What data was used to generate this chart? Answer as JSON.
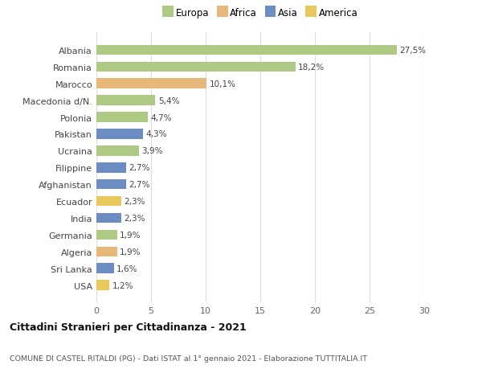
{
  "countries": [
    "Albania",
    "Romania",
    "Marocco",
    "Macedonia d/N.",
    "Polonia",
    "Pakistan",
    "Ucraina",
    "Filippine",
    "Afghanistan",
    "Ecuador",
    "India",
    "Germania",
    "Algeria",
    "Sri Lanka",
    "USA"
  ],
  "values": [
    27.5,
    18.2,
    10.1,
    5.4,
    4.7,
    4.3,
    3.9,
    2.7,
    2.7,
    2.3,
    2.3,
    1.9,
    1.9,
    1.6,
    1.2
  ],
  "labels": [
    "27,5%",
    "18,2%",
    "10,1%",
    "5,4%",
    "4,7%",
    "4,3%",
    "3,9%",
    "2,7%",
    "2,7%",
    "2,3%",
    "2,3%",
    "1,9%",
    "1,9%",
    "1,6%",
    "1,2%"
  ],
  "continents": [
    "Europa",
    "Europa",
    "Africa",
    "Europa",
    "Europa",
    "Asia",
    "Europa",
    "Asia",
    "Asia",
    "America",
    "Asia",
    "Europa",
    "Africa",
    "Asia",
    "America"
  ],
  "colors": {
    "Europa": "#adc984",
    "Africa": "#e8b87a",
    "Asia": "#6b8dc4",
    "America": "#e8c85a"
  },
  "legend_order": [
    "Europa",
    "Africa",
    "Asia",
    "America"
  ],
  "title1": "Cittadini Stranieri per Cittadinanza - 2021",
  "title2": "COMUNE DI CASTEL RITALDI (PG) - Dati ISTAT al 1° gennaio 2021 - Elaborazione TUTTITALIA.IT",
  "xlim": [
    0,
    30
  ],
  "xticks": [
    0,
    5,
    10,
    15,
    20,
    25,
    30
  ],
  "background_color": "#ffffff",
  "grid_color": "#dddddd"
}
